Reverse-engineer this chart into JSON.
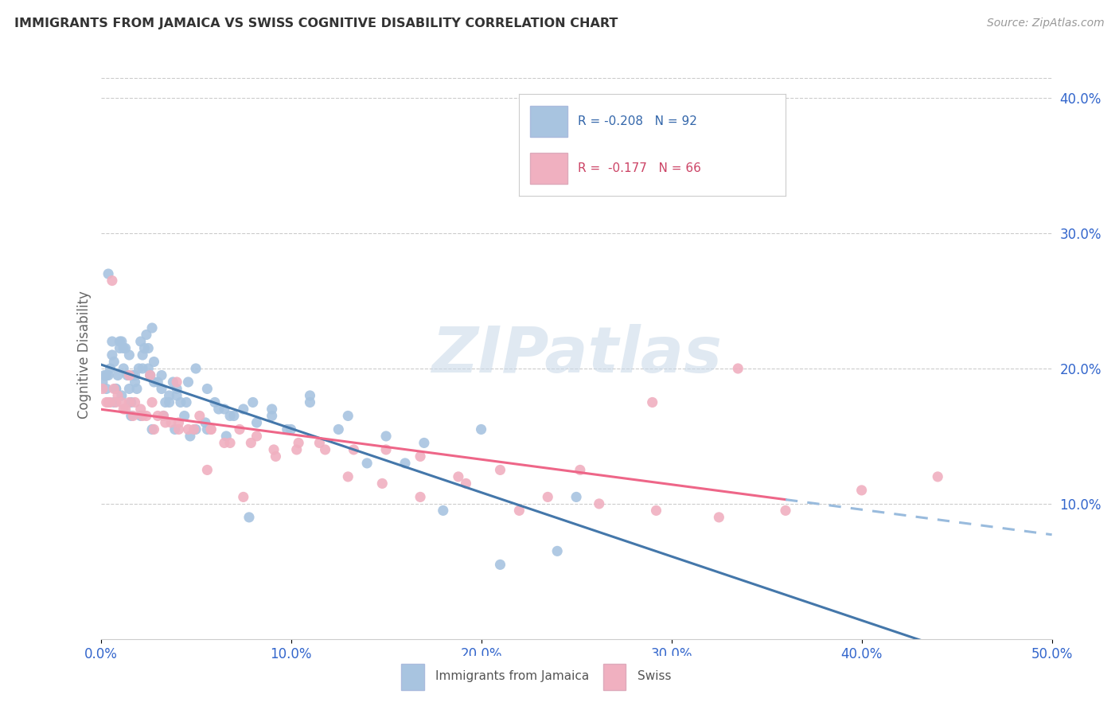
{
  "title": "IMMIGRANTS FROM JAMAICA VS SWISS COGNITIVE DISABILITY CORRELATION CHART",
  "source": "Source: ZipAtlas.com",
  "ylabel": "Cognitive Disability",
  "xlim": [
    0.0,
    0.5
  ],
  "ylim": [
    0.0,
    0.42
  ],
  "color_blue": "#a8c4e0",
  "color_pink": "#f0b0c0",
  "line_blue": "#4477aa",
  "line_pink": "#ee6688",
  "line_dashed": "#99bbdd",
  "watermark": "ZIPatlas",
  "jamaica_x": [
    0.001,
    0.002,
    0.003,
    0.004,
    0.005,
    0.006,
    0.007,
    0.008,
    0.009,
    0.01,
    0.011,
    0.012,
    0.013,
    0.014,
    0.015,
    0.016,
    0.017,
    0.018,
    0.019,
    0.02,
    0.021,
    0.022,
    0.023,
    0.024,
    0.025,
    0.026,
    0.027,
    0.028,
    0.03,
    0.032,
    0.034,
    0.036,
    0.038,
    0.04,
    0.042,
    0.044,
    0.046,
    0.05,
    0.055,
    0.06,
    0.065,
    0.07,
    0.08,
    0.09,
    0.1,
    0.11,
    0.13,
    0.15,
    0.17,
    0.2,
    0.004,
    0.006,
    0.008,
    0.01,
    0.012,
    0.015,
    0.018,
    0.022,
    0.025,
    0.028,
    0.032,
    0.036,
    0.04,
    0.045,
    0.05,
    0.056,
    0.062,
    0.068,
    0.075,
    0.082,
    0.09,
    0.098,
    0.11,
    0.125,
    0.14,
    0.16,
    0.18,
    0.21,
    0.24,
    0.003,
    0.007,
    0.011,
    0.016,
    0.021,
    0.027,
    0.033,
    0.039,
    0.047,
    0.056,
    0.066,
    0.078,
    0.25
  ],
  "jamaica_y": [
    0.19,
    0.195,
    0.185,
    0.195,
    0.2,
    0.21,
    0.205,
    0.185,
    0.195,
    0.215,
    0.18,
    0.2,
    0.215,
    0.195,
    0.185,
    0.175,
    0.195,
    0.19,
    0.185,
    0.2,
    0.22,
    0.21,
    0.215,
    0.225,
    0.2,
    0.195,
    0.23,
    0.205,
    0.19,
    0.195,
    0.175,
    0.18,
    0.19,
    0.185,
    0.175,
    0.165,
    0.19,
    0.155,
    0.16,
    0.175,
    0.17,
    0.165,
    0.175,
    0.165,
    0.155,
    0.18,
    0.165,
    0.15,
    0.145,
    0.155,
    0.27,
    0.22,
    0.185,
    0.22,
    0.215,
    0.21,
    0.195,
    0.2,
    0.215,
    0.19,
    0.185,
    0.175,
    0.18,
    0.175,
    0.2,
    0.185,
    0.17,
    0.165,
    0.17,
    0.16,
    0.17,
    0.155,
    0.175,
    0.155,
    0.13,
    0.13,
    0.095,
    0.055,
    0.065,
    0.195,
    0.175,
    0.22,
    0.165,
    0.165,
    0.155,
    0.165,
    0.155,
    0.15,
    0.155,
    0.15,
    0.09,
    0.105
  ],
  "swiss_x": [
    0.001,
    0.003,
    0.005,
    0.007,
    0.009,
    0.011,
    0.013,
    0.015,
    0.018,
    0.021,
    0.024,
    0.027,
    0.03,
    0.033,
    0.037,
    0.041,
    0.046,
    0.052,
    0.058,
    0.065,
    0.073,
    0.082,
    0.092,
    0.103,
    0.115,
    0.13,
    0.148,
    0.168,
    0.192,
    0.22,
    0.252,
    0.29,
    0.335,
    0.004,
    0.008,
    0.012,
    0.017,
    0.022,
    0.028,
    0.034,
    0.041,
    0.049,
    0.058,
    0.068,
    0.079,
    0.091,
    0.104,
    0.118,
    0.133,
    0.15,
    0.168,
    0.188,
    0.21,
    0.235,
    0.262,
    0.292,
    0.325,
    0.36,
    0.4,
    0.44,
    0.006,
    0.015,
    0.026,
    0.04,
    0.056,
    0.075
  ],
  "swiss_y": [
    0.185,
    0.175,
    0.175,
    0.185,
    0.18,
    0.175,
    0.17,
    0.175,
    0.175,
    0.17,
    0.165,
    0.175,
    0.165,
    0.165,
    0.16,
    0.16,
    0.155,
    0.165,
    0.155,
    0.145,
    0.155,
    0.15,
    0.135,
    0.14,
    0.145,
    0.12,
    0.115,
    0.105,
    0.115,
    0.095,
    0.125,
    0.175,
    0.2,
    0.175,
    0.175,
    0.17,
    0.165,
    0.165,
    0.155,
    0.16,
    0.155,
    0.155,
    0.155,
    0.145,
    0.145,
    0.14,
    0.145,
    0.14,
    0.14,
    0.14,
    0.135,
    0.12,
    0.125,
    0.105,
    0.1,
    0.095,
    0.09,
    0.095,
    0.11,
    0.12,
    0.265,
    0.195,
    0.195,
    0.19,
    0.125,
    0.105
  ]
}
